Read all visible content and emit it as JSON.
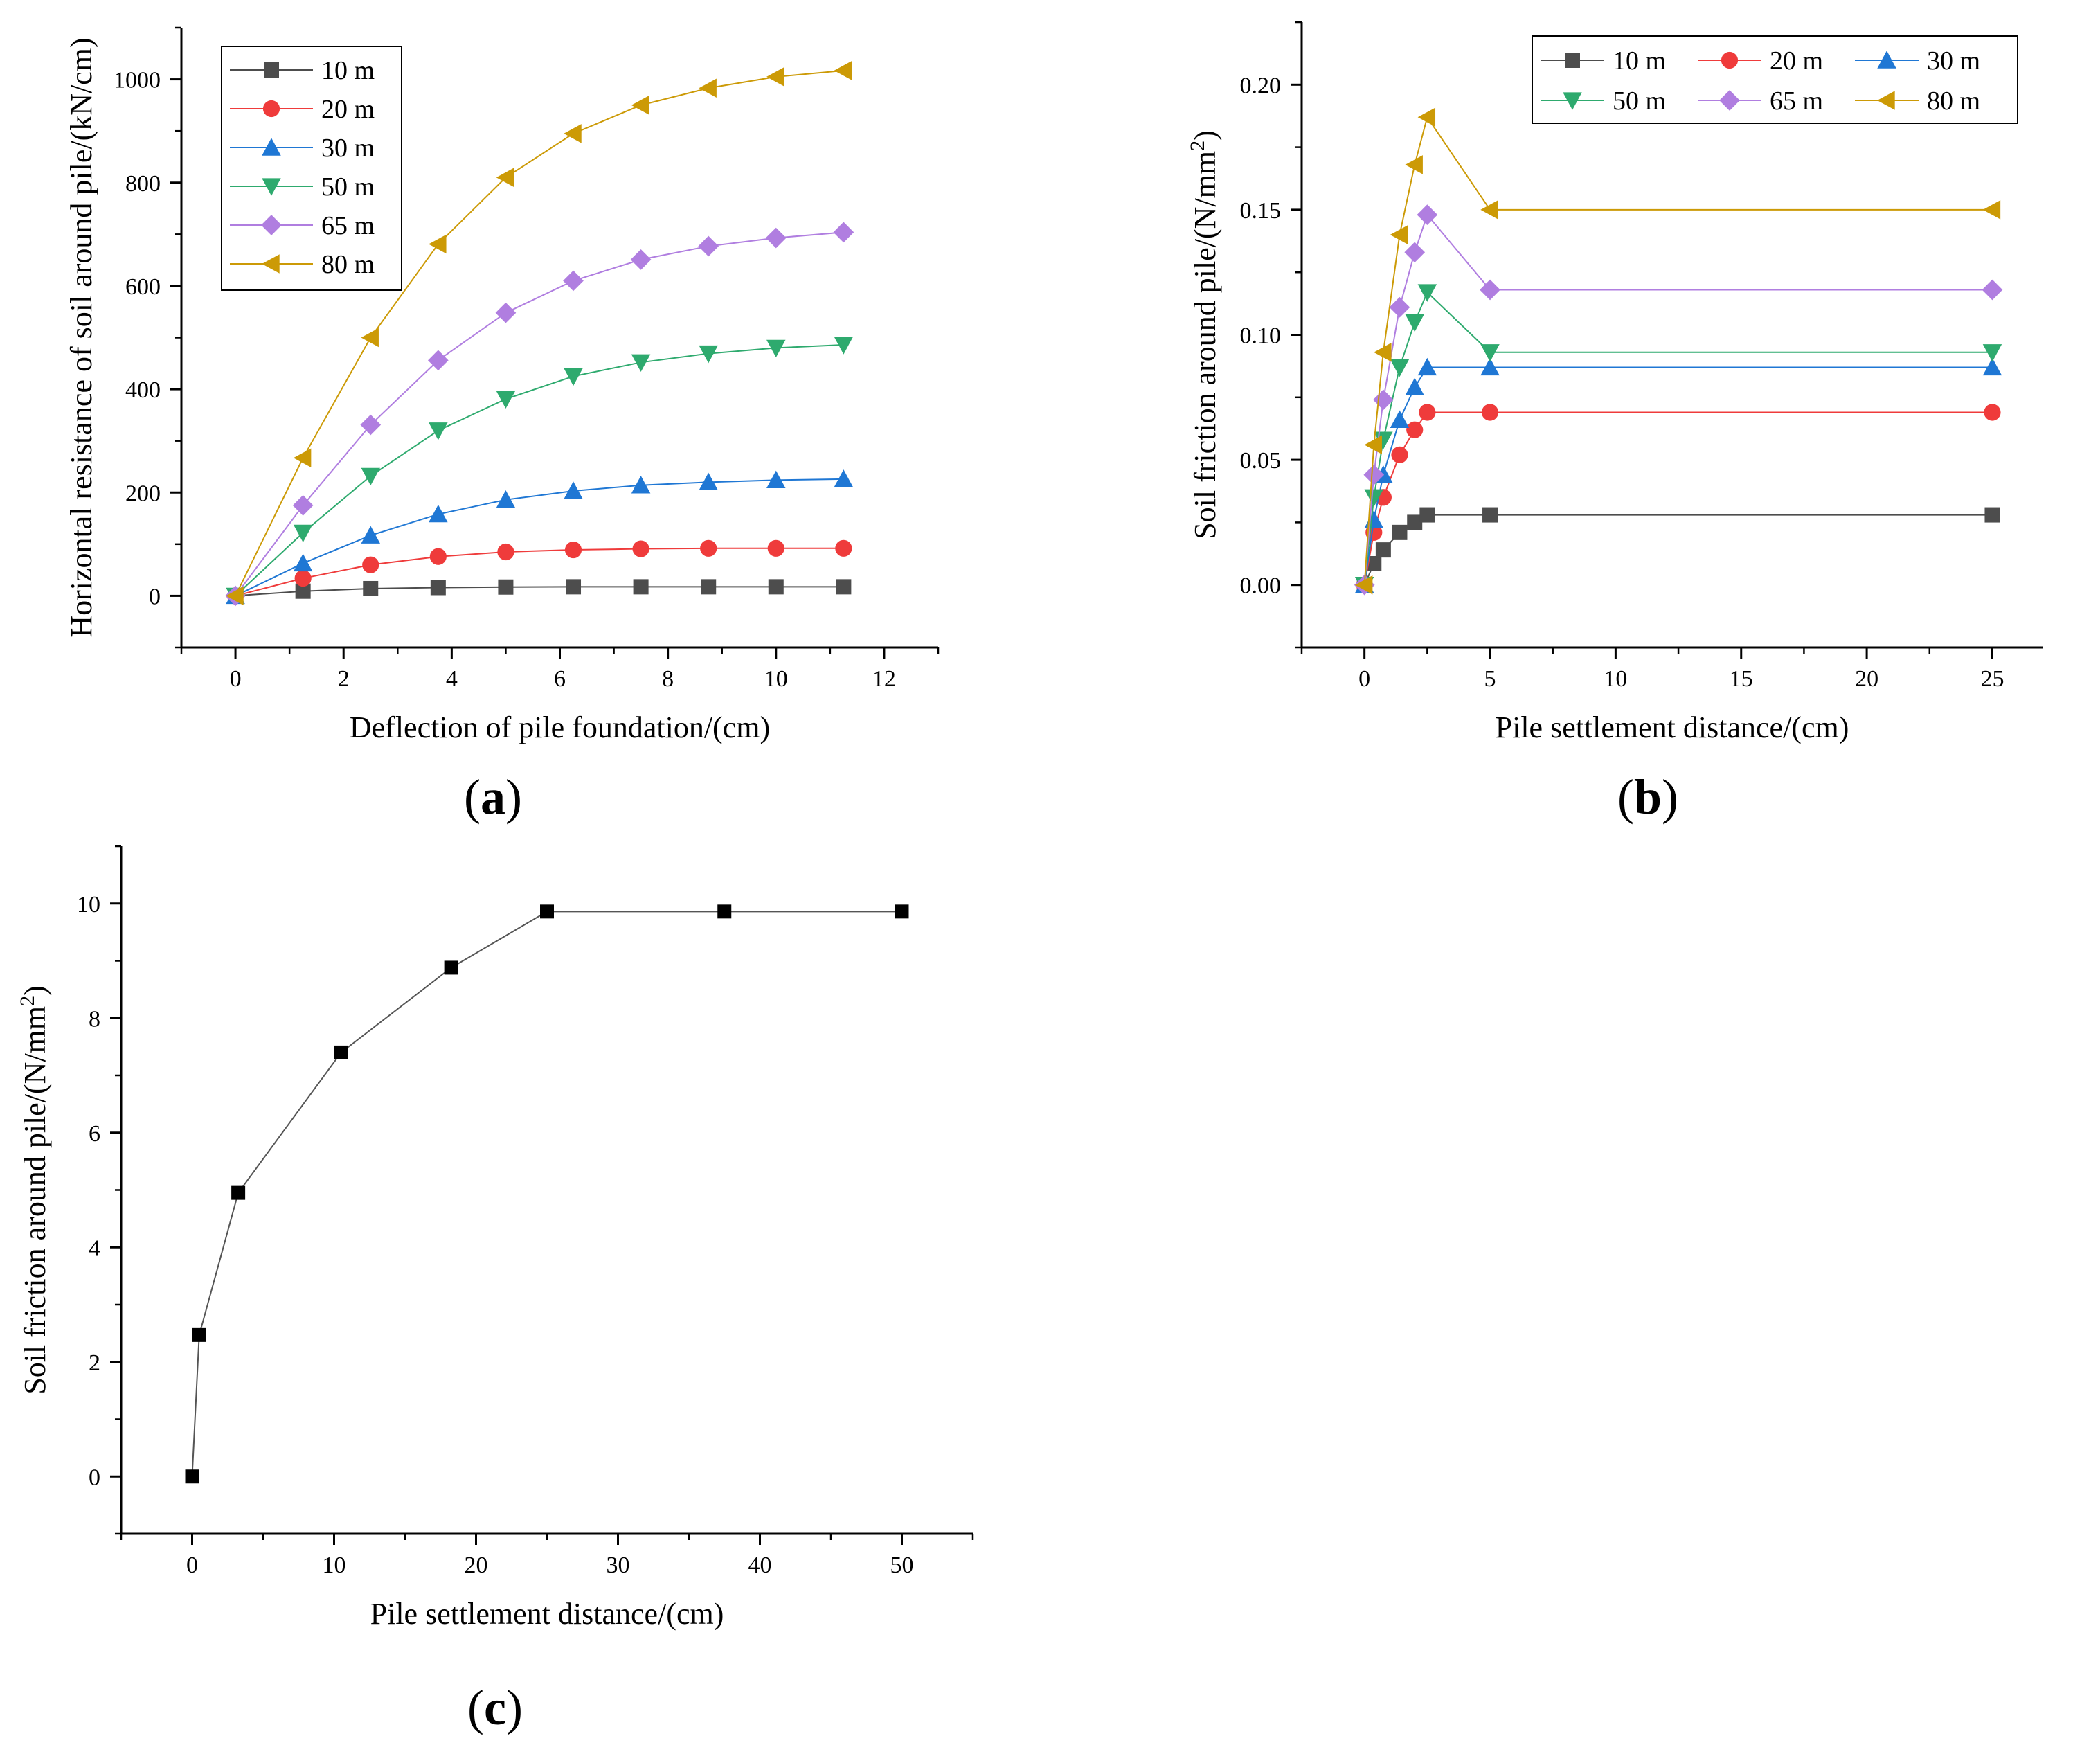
{
  "figure": {
    "panels": [
      {
        "id": "a",
        "label": "a"
      },
      {
        "id": "b",
        "label": "b"
      },
      {
        "id": "c",
        "label": "c"
      }
    ]
  },
  "chart_data": [
    {
      "id": "a",
      "type": "line",
      "title": "",
      "xlabel": "Deflection of pile foundation/(cm)",
      "ylabel": "Horizontal resistance of soil around pile/(kN/cm)",
      "xlim": [
        -1,
        13
      ],
      "ylim": [
        -100,
        1100
      ],
      "xticks": [
        0,
        2,
        4,
        6,
        8,
        10,
        12
      ],
      "yticks": [
        0,
        200,
        400,
        600,
        800,
        1000
      ],
      "x": [
        0,
        1.25,
        2.5,
        3.75,
        5,
        6.25,
        7.5,
        8.75,
        10,
        11.25
      ],
      "legend_position": "top-left",
      "series": [
        {
          "name": "10 m",
          "color": "#4d4d4d",
          "marker": "square",
          "values": [
            0,
            9,
            14,
            16,
            17,
            17.5,
            17.5,
            17.5,
            17.5,
            17.5
          ]
        },
        {
          "name": "20 m",
          "color": "#ef3b3b",
          "marker": "circle",
          "values": [
            0,
            34,
            60,
            76,
            85,
            89,
            91,
            92,
            92,
            92
          ]
        },
        {
          "name": "30 m",
          "color": "#1f77d4",
          "marker": "triangle-up",
          "values": [
            0,
            63,
            117,
            158,
            186,
            203,
            214,
            220,
            224,
            226
          ]
        },
        {
          "name": "50 m",
          "color": "#2eaa6e",
          "marker": "triangle-down",
          "values": [
            0,
            122,
            232,
            320,
            381,
            425,
            452,
            469,
            480,
            486
          ]
        },
        {
          "name": "65 m",
          "color": "#b07ee0",
          "marker": "diamond",
          "values": [
            0,
            175,
            331,
            456,
            548,
            610,
            651,
            677,
            693,
            704
          ]
        },
        {
          "name": "80 m",
          "color": "#cc9a06",
          "marker": "triangle-left",
          "values": [
            0,
            267,
            500,
            681,
            810,
            895,
            950,
            983,
            1005,
            1017
          ]
        }
      ]
    },
    {
      "id": "b",
      "type": "line",
      "title": "",
      "xlabel": "Pile settlement distance/(cm)",
      "ylabel_main": "Soil friction around pile/(N/mm",
      "ylabel_sup": "2",
      "ylabel_end": ")",
      "xlim": [
        -2.5,
        27
      ],
      "ylim": [
        -0.025,
        0.225
      ],
      "xticks": [
        0,
        5,
        10,
        15,
        20,
        25
      ],
      "yticks": [
        0.0,
        0.05,
        0.1,
        0.15,
        0.2
      ],
      "ytick_labels": [
        "0.00",
        "0.05",
        "0.10",
        "0.15",
        "0.20"
      ],
      "x": [
        0,
        0.375,
        0.75,
        1.4,
        2.0,
        2.5,
        5,
        25
      ],
      "legend_position": "top-right",
      "series": [
        {
          "name": "10 m",
          "color": "#4d4d4d",
          "marker": "square",
          "values": [
            0,
            0.0085,
            0.014,
            0.021,
            0.025,
            0.028,
            0.028,
            0.028
          ]
        },
        {
          "name": "20 m",
          "color": "#ef3b3b",
          "marker": "circle",
          "values": [
            0,
            0.021,
            0.035,
            0.052,
            0.062,
            0.069,
            0.069,
            0.069
          ]
        },
        {
          "name": "30 m",
          "color": "#1f77d4",
          "marker": "triangle-up",
          "values": [
            0,
            0.026,
            0.044,
            0.066,
            0.079,
            0.087,
            0.087,
            0.087
          ]
        },
        {
          "name": "50 m",
          "color": "#2eaa6e",
          "marker": "triangle-down",
          "values": [
            0,
            0.035,
            0.058,
            0.087,
            0.105,
            0.117,
            0.093,
            0.093
          ]
        },
        {
          "name": "65 m",
          "color": "#b07ee0",
          "marker": "diamond",
          "values": [
            0,
            0.044,
            0.074,
            0.111,
            0.133,
            0.148,
            0.118,
            0.118
          ]
        },
        {
          "name": "80 m",
          "color": "#cc9a06",
          "marker": "triangle-left",
          "values": [
            0,
            0.056,
            0.093,
            0.14,
            0.168,
            0.187,
            0.15,
            0.15
          ]
        }
      ]
    },
    {
      "id": "c",
      "type": "line",
      "title": "",
      "xlabel": "Pile settlement distance/(cm)",
      "ylabel_main": "Soil friction around pile/(N/mm",
      "ylabel_sup": "2",
      "ylabel_end": ")",
      "xlim": [
        -5,
        55
      ],
      "ylim": [
        -1,
        11
      ],
      "xticks": [
        0,
        10,
        20,
        30,
        40,
        50
      ],
      "yticks": [
        0,
        2,
        4,
        6,
        8,
        10
      ],
      "x": [
        0,
        0.5,
        3.25,
        10.5,
        18.25,
        25,
        37.5,
        50
      ],
      "series": [
        {
          "name": "",
          "color": "#000000",
          "line_color": "#555555",
          "marker": "square",
          "values": [
            0,
            2.47,
            4.95,
            7.4,
            8.88,
            9.86,
            9.86,
            9.86
          ]
        }
      ]
    }
  ]
}
